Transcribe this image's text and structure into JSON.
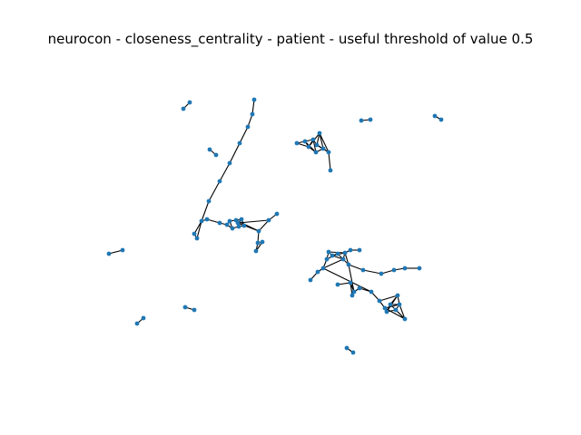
{
  "figure": {
    "title": "neurocon - closeness_centrality - patient - useful threshold of value 0.5"
  },
  "graph": {
    "node_color": "#1f77b4",
    "edge_color": "#000000"
  }
}
